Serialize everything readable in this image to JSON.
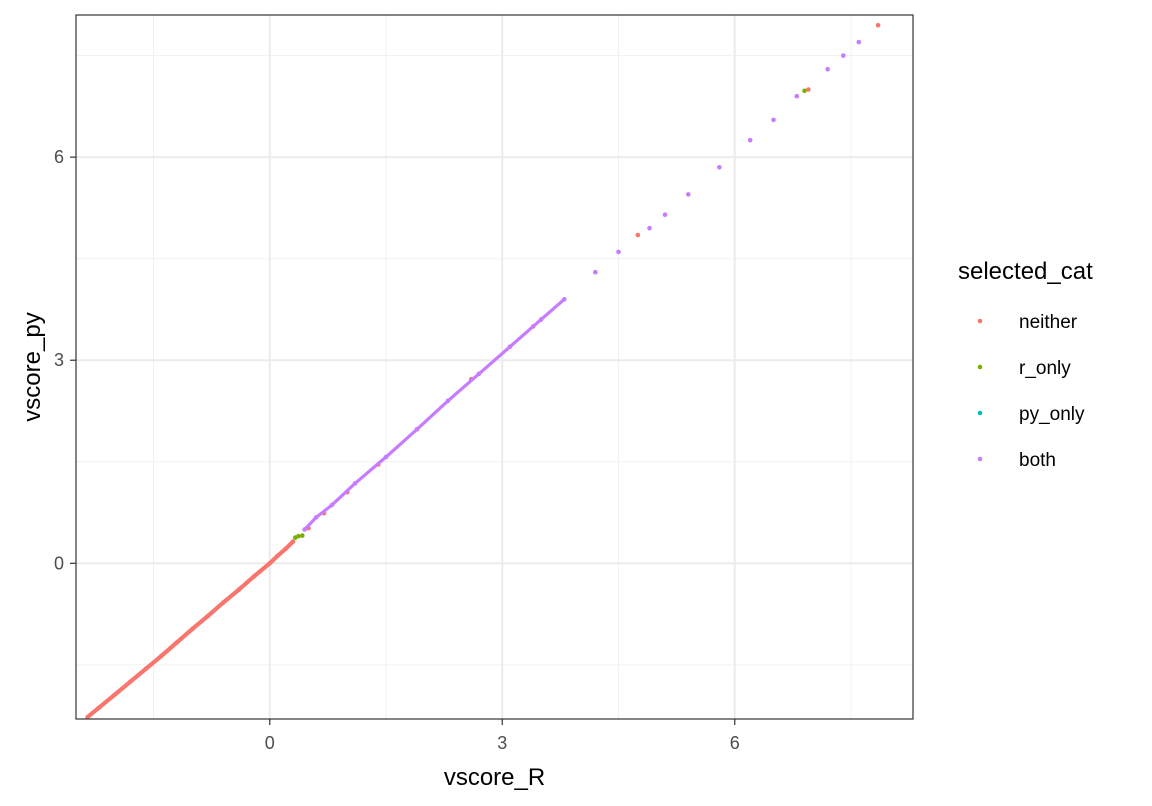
{
  "chart_data": {
    "type": "scatter",
    "xlabel": "vscore_R",
    "ylabel": "vscore_py",
    "xlim": [
      -2.5,
      8.3
    ],
    "ylim": [
      -2.3,
      8.1
    ],
    "x_ticks": [
      0,
      3,
      6
    ],
    "y_ticks": [
      0,
      3,
      6
    ],
    "x_tick_labels": [
      "0",
      "3",
      "6"
    ],
    "y_tick_labels": [
      "0",
      "3",
      "6"
    ],
    "grid": true,
    "legend": {
      "title": "selected_cat",
      "position": "right",
      "entries": [
        "neither",
        "r_only",
        "py_only",
        "both"
      ]
    },
    "series": [
      {
        "name": "neither",
        "color": "#F8766D",
        "points": [
          [
            -2.35,
            -2.27
          ],
          [
            -2.2,
            -2.13
          ],
          [
            -2.0,
            -1.94
          ],
          [
            -1.8,
            -1.75
          ],
          [
            -1.6,
            -1.56
          ],
          [
            -1.4,
            -1.37
          ],
          [
            -1.2,
            -1.17
          ],
          [
            -1.0,
            -0.97
          ],
          [
            -0.8,
            -0.78
          ],
          [
            -0.6,
            -0.58
          ],
          [
            -0.4,
            -0.39
          ],
          [
            -0.2,
            -0.19
          ],
          [
            0.0,
            0.0
          ],
          [
            0.1,
            0.11
          ],
          [
            0.2,
            0.21
          ],
          [
            0.3,
            0.32
          ],
          [
            0.5,
            0.52
          ],
          [
            0.7,
            0.74
          ],
          [
            1.0,
            1.05
          ],
          [
            1.4,
            1.46
          ],
          [
            1.9,
            1.98
          ],
          [
            2.6,
            2.72
          ],
          [
            3.4,
            3.5
          ],
          [
            4.75,
            4.85
          ],
          [
            6.95,
            7.0
          ],
          [
            7.85,
            7.95
          ]
        ]
      },
      {
        "name": "r_only",
        "color": "#7CAE00",
        "points": [
          [
            0.33,
            0.38
          ],
          [
            0.37,
            0.4
          ],
          [
            0.42,
            0.41
          ],
          [
            6.9,
            6.98
          ]
        ]
      },
      {
        "name": "py_only",
        "color": "#00BFC4",
        "points": []
      },
      {
        "name": "both",
        "color": "#C77CFF",
        "points": [
          [
            0.45,
            0.5
          ],
          [
            0.6,
            0.68
          ],
          [
            0.8,
            0.86
          ],
          [
            1.1,
            1.18
          ],
          [
            1.5,
            1.57
          ],
          [
            1.9,
            1.98
          ],
          [
            2.3,
            2.4
          ],
          [
            2.7,
            2.8
          ],
          [
            3.1,
            3.2
          ],
          [
            3.5,
            3.6
          ],
          [
            3.8,
            3.9
          ],
          [
            4.2,
            4.3
          ],
          [
            4.5,
            4.6
          ],
          [
            4.9,
            4.95
          ],
          [
            5.1,
            5.15
          ],
          [
            5.4,
            5.45
          ],
          [
            5.8,
            5.85
          ],
          [
            6.2,
            6.25
          ],
          [
            6.5,
            6.55
          ],
          [
            6.8,
            6.9
          ],
          [
            7.2,
            7.3
          ],
          [
            7.4,
            7.5
          ],
          [
            7.6,
            7.7
          ]
        ]
      }
    ]
  }
}
